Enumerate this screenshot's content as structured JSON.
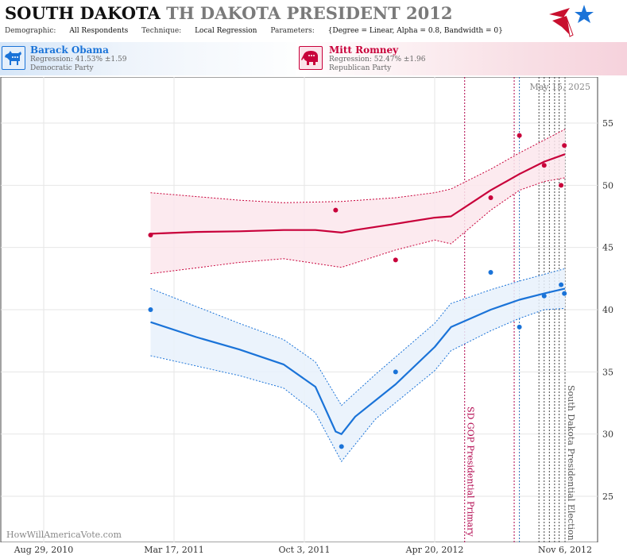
{
  "header": {
    "title_main": "SOUTH DAKOTA",
    "title_sub": "TH DAKOTA PRESIDENT 2012",
    "demographic_label": "Demographic:",
    "demographic_value": "All Respondents",
    "technique_label": "Technique:",
    "technique_value": "Local Regression",
    "parameters_label": "Parameters:",
    "parameters_value": "{Degree = Linear, Alpha = 0.8, Bandwidth = 0}"
  },
  "candidates": {
    "dem": {
      "name": "Barack Obama",
      "regression": "Regression: 41.53% ±1.59",
      "party": "Democratic Party",
      "color": "#1a73d8"
    },
    "rep": {
      "name": "Mitt Romney",
      "regression": "Regression: 52.47% ±1.96",
      "party": "Republican Party",
      "color": "#c8003a"
    }
  },
  "watermark": "HowWillAmericaVote.com",
  "chart_data": {
    "type": "line",
    "date_label": "May 15, 2025",
    "x_tick_labels": [
      "Aug 29, 2010",
      "Mar 17, 2011",
      "Oct 3, 2011",
      "Apr 20, 2012",
      "Nov 6, 2012"
    ],
    "x_ticks": [
      "2010-08-29",
      "2011-03-17",
      "2011-10-03",
      "2012-04-20",
      "2012-11-06"
    ],
    "ylim": [
      21,
      58
    ],
    "y_ticks": [
      25,
      30,
      35,
      40,
      45,
      50,
      55
    ],
    "events": [
      {
        "date": "2012-06-05",
        "label": "SD GOP Presidential Primary",
        "color": "#b0004a"
      },
      {
        "date": "2012-11-06",
        "label": "South Dakota Presidential Election",
        "color": "#555555"
      }
    ],
    "extra_vlines": [
      {
        "date": "2012-08-20",
        "color": "#b0004a"
      },
      {
        "date": "2012-08-28",
        "color": "#2a6fb8"
      },
      {
        "date": "2012-09-27",
        "color": "#444444"
      },
      {
        "date": "2012-10-05",
        "color": "#444444"
      },
      {
        "date": "2012-10-13",
        "color": "#444444"
      },
      {
        "date": "2012-10-21",
        "color": "#444444"
      },
      {
        "date": "2012-10-28",
        "color": "#444444"
      }
    ],
    "series": [
      {
        "name": "Barack Obama",
        "color": "#1a73d8",
        "fill": "#e8f1fb",
        "points": [
          {
            "x": "2011-02-09",
            "y": 40
          },
          {
            "x": "2011-11-29",
            "y": 29
          },
          {
            "x": "2012-02-20",
            "y": 35
          },
          {
            "x": "2012-07-15",
            "y": 43
          },
          {
            "x": "2012-08-28",
            "y": 38.6
          },
          {
            "x": "2012-10-05",
            "y": 41.1
          },
          {
            "x": "2012-10-31",
            "y": 42
          },
          {
            "x": "2012-11-05",
            "y": 41.3
          }
        ],
        "trend": [
          {
            "x": "2011-02-09",
            "y": 39.0
          },
          {
            "x": "2011-04-20",
            "y": 37.8
          },
          {
            "x": "2011-06-25",
            "y": 36.8
          },
          {
            "x": "2011-09-01",
            "y": 35.6
          },
          {
            "x": "2011-10-20",
            "y": 33.8
          },
          {
            "x": "2011-11-20",
            "y": 30.2
          },
          {
            "x": "2011-11-29",
            "y": 30.0
          },
          {
            "x": "2011-12-20",
            "y": 31.4
          },
          {
            "x": "2012-02-20",
            "y": 34.0
          },
          {
            "x": "2012-04-20",
            "y": 37.0
          },
          {
            "x": "2012-05-15",
            "y": 38.6
          },
          {
            "x": "2012-07-15",
            "y": 40.0
          },
          {
            "x": "2012-08-28",
            "y": 40.8
          },
          {
            "x": "2012-10-05",
            "y": 41.3
          },
          {
            "x": "2012-11-06",
            "y": 41.7
          }
        ],
        "upper": [
          {
            "x": "2011-02-09",
            "y": 41.7
          },
          {
            "x": "2011-06-25",
            "y": 38.9
          },
          {
            "x": "2011-09-01",
            "y": 37.6
          },
          {
            "x": "2011-10-20",
            "y": 35.8
          },
          {
            "x": "2011-11-29",
            "y": 32.3
          },
          {
            "x": "2012-01-20",
            "y": 34.8
          },
          {
            "x": "2012-04-20",
            "y": 38.9
          },
          {
            "x": "2012-05-15",
            "y": 40.5
          },
          {
            "x": "2012-07-15",
            "y": 41.6
          },
          {
            "x": "2012-08-28",
            "y": 42.3
          },
          {
            "x": "2012-11-06",
            "y": 43.3
          }
        ],
        "lower": [
          {
            "x": "2011-02-09",
            "y": 36.3
          },
          {
            "x": "2011-06-25",
            "y": 34.7
          },
          {
            "x": "2011-09-01",
            "y": 33.7
          },
          {
            "x": "2011-10-20",
            "y": 31.7
          },
          {
            "x": "2011-11-29",
            "y": 27.8
          },
          {
            "x": "2012-01-20",
            "y": 31.2
          },
          {
            "x": "2012-04-20",
            "y": 35.1
          },
          {
            "x": "2012-05-15",
            "y": 36.7
          },
          {
            "x": "2012-07-15",
            "y": 38.3
          },
          {
            "x": "2012-08-28",
            "y": 39.3
          },
          {
            "x": "2012-10-05",
            "y": 40.0
          },
          {
            "x": "2012-11-06",
            "y": 40.1
          }
        ]
      },
      {
        "name": "Mitt Romney",
        "color": "#c8003a",
        "fill": "#fbe6ec",
        "points": [
          {
            "x": "2011-02-09",
            "y": 46
          },
          {
            "x": "2011-11-20",
            "y": 48
          },
          {
            "x": "2012-02-20",
            "y": 44
          },
          {
            "x": "2012-07-15",
            "y": 49
          },
          {
            "x": "2012-08-28",
            "y": 54
          },
          {
            "x": "2012-10-05",
            "y": 51.6
          },
          {
            "x": "2012-10-31",
            "y": 50
          },
          {
            "x": "2012-11-05",
            "y": 53.2
          }
        ],
        "trend": [
          {
            "x": "2011-02-09",
            "y": 46.1
          },
          {
            "x": "2011-04-20",
            "y": 46.25
          },
          {
            "x": "2011-06-25",
            "y": 46.3
          },
          {
            "x": "2011-09-01",
            "y": 46.4
          },
          {
            "x": "2011-10-20",
            "y": 46.4
          },
          {
            "x": "2011-11-29",
            "y": 46.2
          },
          {
            "x": "2011-12-20",
            "y": 46.4
          },
          {
            "x": "2012-02-20",
            "y": 46.9
          },
          {
            "x": "2012-04-20",
            "y": 47.4
          },
          {
            "x": "2012-05-15",
            "y": 47.5
          },
          {
            "x": "2012-07-15",
            "y": 49.6
          },
          {
            "x": "2012-08-28",
            "y": 50.9
          },
          {
            "x": "2012-10-05",
            "y": 51.9
          },
          {
            "x": "2012-11-06",
            "y": 52.5
          }
        ],
        "upper": [
          {
            "x": "2011-02-09",
            "y": 49.4
          },
          {
            "x": "2011-06-25",
            "y": 48.8
          },
          {
            "x": "2011-09-01",
            "y": 48.6
          },
          {
            "x": "2011-11-29",
            "y": 48.7
          },
          {
            "x": "2012-02-20",
            "y": 49.0
          },
          {
            "x": "2012-04-20",
            "y": 49.4
          },
          {
            "x": "2012-05-15",
            "y": 49.7
          },
          {
            "x": "2012-07-15",
            "y": 51.3
          },
          {
            "x": "2012-08-28",
            "y": 52.6
          },
          {
            "x": "2012-11-06",
            "y": 54.5
          }
        ],
        "lower": [
          {
            "x": "2011-02-09",
            "y": 42.9
          },
          {
            "x": "2011-06-25",
            "y": 43.8
          },
          {
            "x": "2011-09-01",
            "y": 44.1
          },
          {
            "x": "2011-11-29",
            "y": 43.4
          },
          {
            "x": "2012-02-20",
            "y": 44.8
          },
          {
            "x": "2012-04-20",
            "y": 45.6
          },
          {
            "x": "2012-05-15",
            "y": 45.3
          },
          {
            "x": "2012-07-15",
            "y": 48.0
          },
          {
            "x": "2012-08-28",
            "y": 49.6
          },
          {
            "x": "2012-10-05",
            "y": 50.3
          },
          {
            "x": "2012-11-06",
            "y": 50.6
          }
        ]
      }
    ]
  }
}
